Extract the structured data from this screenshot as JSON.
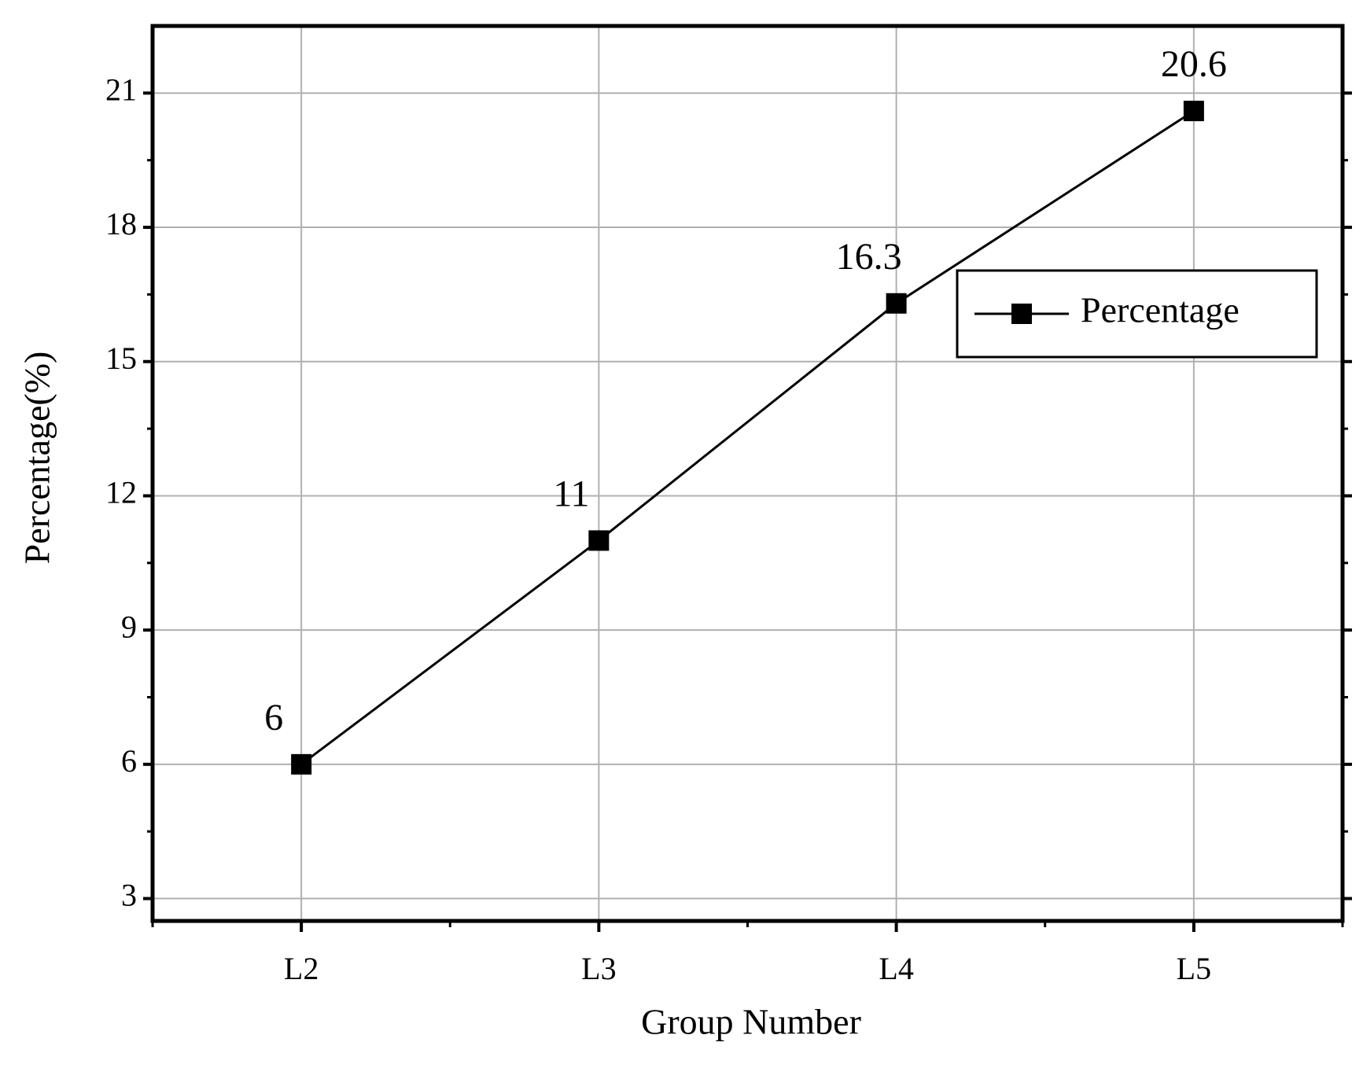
{
  "chart_data": {
    "type": "line",
    "x_label": "Group Number",
    "y_label": "Percentage(%)",
    "categories": [
      "L2",
      "L3",
      "L4",
      "L5"
    ],
    "series": [
      {
        "name": "Percentage",
        "color": "#000000",
        "values": [
          6,
          11,
          16.3,
          20.6
        ]
      }
    ],
    "ylim": [
      2.5,
      22.5
    ],
    "yticks": [
      3,
      6,
      9,
      12,
      15,
      18,
      21
    ],
    "grid": true,
    "legend": "upper right"
  }
}
